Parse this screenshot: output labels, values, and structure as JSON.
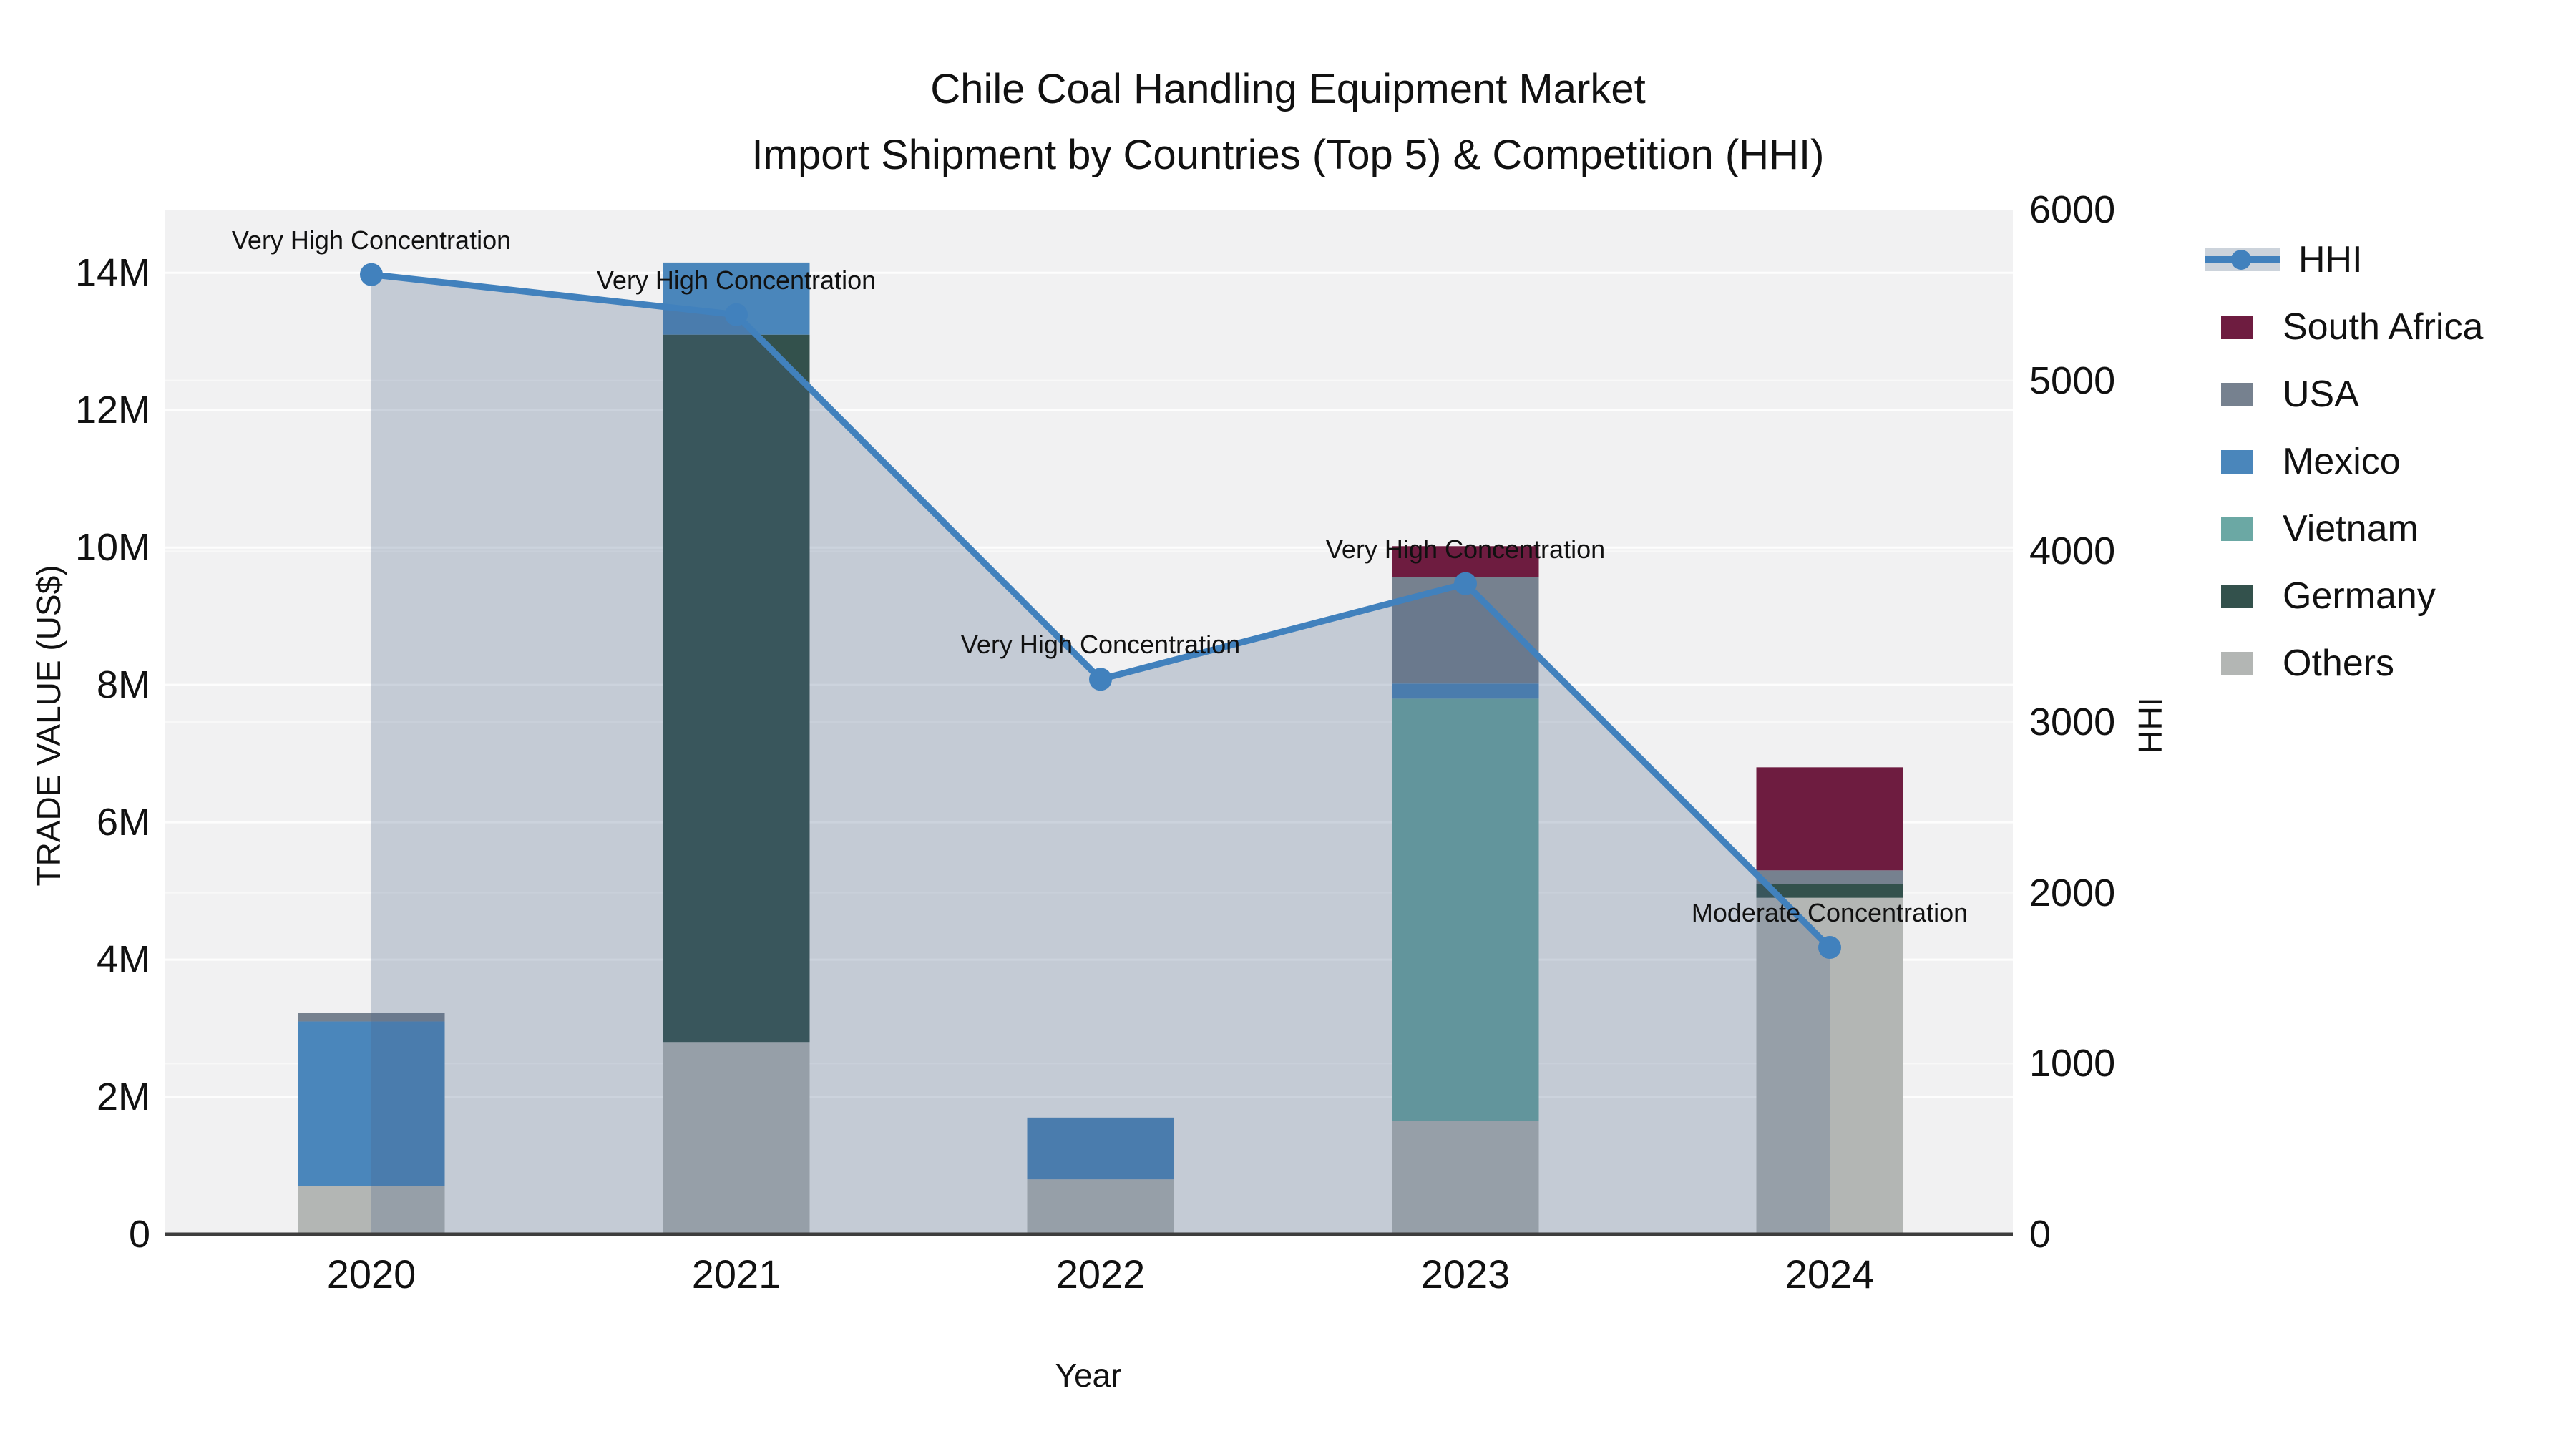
{
  "title": {
    "line1": "Chile Coal Handling Equipment Market",
    "line2": "Import Shipment by Countries (Top 5) & Competition (HHI)"
  },
  "chart_data": {
    "type": "bar+line",
    "categories": [
      "2020",
      "2021",
      "2022",
      "2023",
      "2024"
    ],
    "stack_order_note": "series listed bottom-to-top of stack; values in millions US$",
    "series": [
      {
        "name": "Others",
        "color": "#b3b6b4",
        "values": [
          0.7,
          2.8,
          0.8,
          1.65,
          4.9
        ]
      },
      {
        "name": "Vietnam",
        "color": "#6ba8a4",
        "values": [
          0.0,
          0.0,
          0.0,
          6.15,
          0.0
        ]
      },
      {
        "name": "Germany",
        "color": "#33514c",
        "values": [
          0.0,
          10.3,
          0.0,
          0.0,
          0.2
        ]
      },
      {
        "name": "Mexico",
        "color": "#4a86bb",
        "values": [
          2.4,
          1.05,
          0.9,
          0.22,
          0.0
        ]
      },
      {
        "name": "USA",
        "color": "#76818f",
        "values": [
          0.12,
          0.0,
          0.0,
          1.55,
          0.2
        ]
      },
      {
        "name": "South Africa",
        "color": "#6e1c40",
        "values": [
          0.0,
          0.0,
          0.0,
          0.45,
          1.5
        ]
      }
    ],
    "hhi_line": {
      "name": "HHI",
      "color": "#4181bd",
      "area_fill": "rgba(73,100,135,0.27)",
      "values": [
        5620,
        5385,
        3250,
        3810,
        1680
      ]
    },
    "annotations": [
      {
        "year": "2020",
        "text": "Very High Concentration"
      },
      {
        "year": "2021",
        "text": "Very High Concentration"
      },
      {
        "year": "2022",
        "text": "Very High Concentration"
      },
      {
        "year": "2023",
        "text": "Very High Concentration"
      },
      {
        "year": "2024",
        "text": "Moderate Concentration"
      }
    ],
    "y_left": {
      "label": "TRADE VALUE (US$)",
      "ticks": [
        "0",
        "2M",
        "4M",
        "6M",
        "8M",
        "10M",
        "12M",
        "14M"
      ],
      "tick_step_millions": 2,
      "max_millions": 14.92
    },
    "y_right": {
      "label": "HHI",
      "ticks": [
        "0",
        "1000",
        "2000",
        "3000",
        "4000",
        "5000",
        "6000"
      ],
      "tick_step": 1000,
      "max": 6000
    },
    "x_axis": {
      "label": "Year"
    },
    "legend": [
      {
        "label": "HHI",
        "type": "line",
        "color": "#4181bd"
      },
      {
        "label": "South Africa",
        "type": "swatch",
        "color": "#6e1c40"
      },
      {
        "label": "USA",
        "type": "swatch",
        "color": "#76818f"
      },
      {
        "label": "Mexico",
        "type": "swatch",
        "color": "#4a86bb"
      },
      {
        "label": "Vietnam",
        "type": "swatch",
        "color": "#6ba8a4"
      },
      {
        "label": "Germany",
        "type": "swatch",
        "color": "#33514c"
      },
      {
        "label": "Others",
        "type": "swatch",
        "color": "#b3b6b4"
      }
    ],
    "plot_bg": "#f1f1f2",
    "text_color": "#111111"
  }
}
